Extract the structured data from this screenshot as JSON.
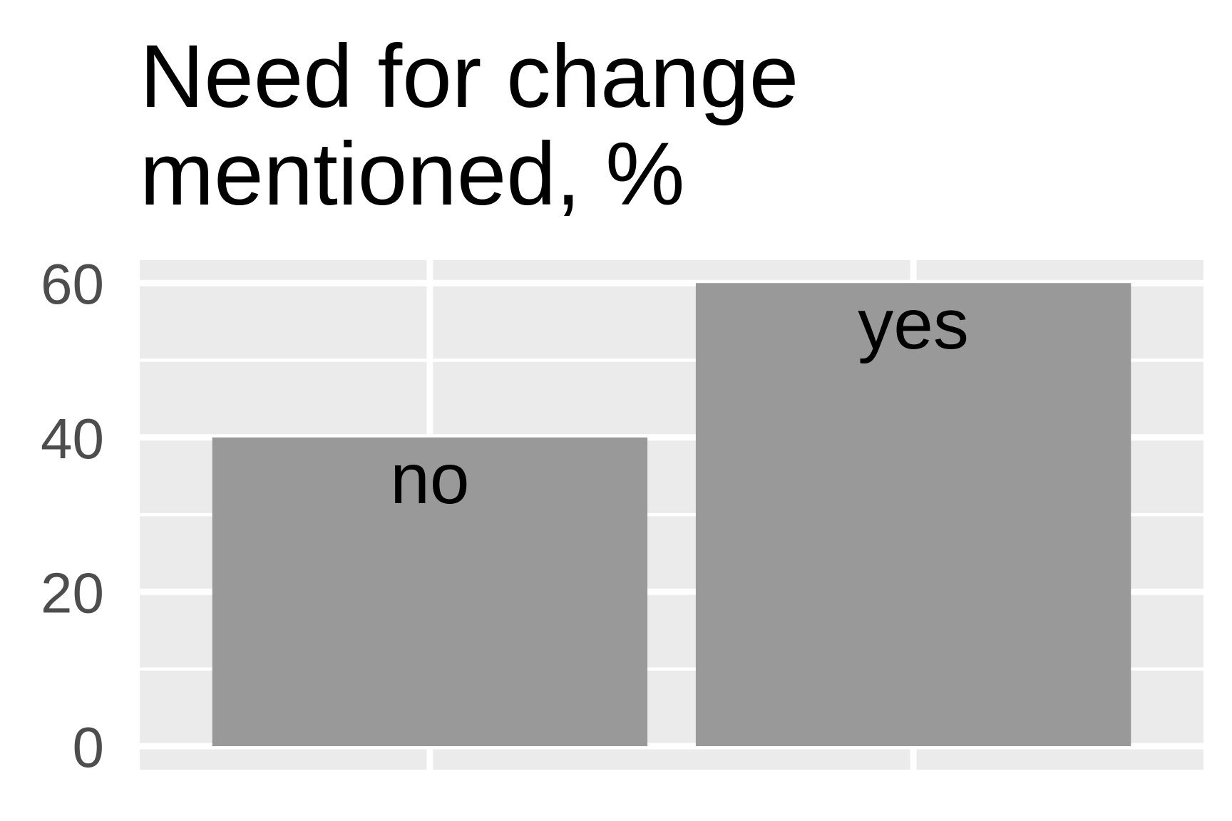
{
  "chart_data": {
    "type": "bar",
    "title": [
      "Need for change",
      "mentioned, %"
    ],
    "xlabel": "",
    "ylabel": "",
    "categories": [
      "no",
      "yes"
    ],
    "values": [
      40,
      60
    ],
    "ylim": [
      0,
      62.9
    ],
    "y_ticks": [
      0,
      20,
      40,
      60
    ],
    "y_tick_labels": [
      "0",
      "20",
      "40",
      "60"
    ],
    "bar_labels": [
      "no",
      "yes"
    ],
    "grid": true,
    "legend": "none",
    "colors": {
      "panel_background": "#ebebeb",
      "grid": "#ffffff",
      "bar": "#999999",
      "tick_text": "#4d4d4d",
      "text": "#000000"
    }
  }
}
